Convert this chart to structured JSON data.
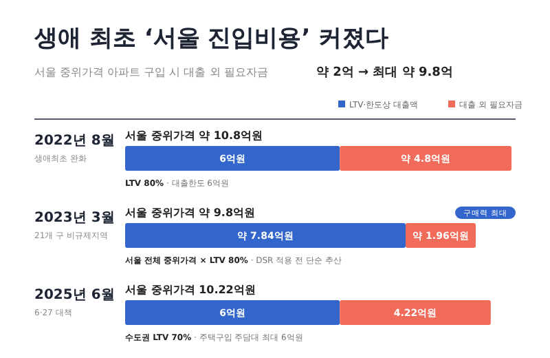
{
  "chart_data": {
    "type": "bar",
    "orientation": "horizontal",
    "stacked": true,
    "title": "생애 최초 ‘서울 진입비용’ 커졌다",
    "subtitle": "서울 중위가격 아파트 구입 시 대출 외 필요자금",
    "categories": [
      "2022년 8월",
      "2023년 3월",
      "2025년 6월"
    ],
    "series": [
      {
        "name": "LTV·한도상 대출액",
        "color": "#3366cc",
        "values": [
          6,
          7.84,
          6
        ],
        "value_labels": [
          "6억원",
          "약 7.84억원",
          "6억원"
        ]
      },
      {
        "name": "대출 외 필요자금",
        "color": "#f06b5a",
        "values": [
          4.8,
          1.96,
          4.22
        ],
        "value_labels": [
          "약 4.8억원",
          "약 1.96억원",
          "4.22억원"
        ]
      }
    ],
    "legend": "top right",
    "annotations": [
      "약 2억 → 최대 약 9.8억",
      "생애최초 완화",
      "서울 중위가격 약 10.8억원",
      "**LTV 80%** · 대출한도 6억원",
      "21개 구 비규제지역",
      "서울 중위가격 약 9.8억원",
      "**서울 전체 중위가격 × LTV 80%** · DSR 적용 전 단순 추산",
      "구매력 최대",
      "6·27 대책",
      "서울 중위가격 10.22억원",
      "**수도권 LTV 70%** · 주택구입 주담대 최대 6억원"
    ]
  }
}
